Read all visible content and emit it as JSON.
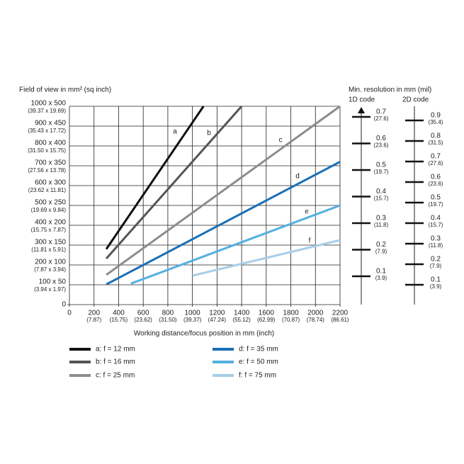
{
  "chart_data": [
    {
      "type": "line",
      "y_title": "Field of view in mm² (sq inch)",
      "x_title": "Working distance/focus position in mm (inch)",
      "xlim": [
        0,
        2200
      ],
      "ylim": [
        0,
        1000
      ],
      "xticks": [
        0,
        200,
        400,
        600,
        800,
        1000,
        1200,
        1400,
        1600,
        1800,
        2000,
        2200
      ],
      "xtick_sublabels": [
        null,
        "(7.87)",
        "(15.75)",
        "(23.62)",
        "(31.50)",
        "(39.37)",
        "(47.24)",
        "(55.12)",
        "(62.99)",
        "(70.87)",
        "(78.74)",
        "(86.61)"
      ],
      "yticks": [
        0,
        {
          "value": 100,
          "label": "100 x 50"
        },
        {
          "value": 200,
          "label": "200 x 100"
        },
        {
          "value": 300,
          "label": "300 x 150"
        },
        {
          "value": 400,
          "label": "400 x 200"
        },
        {
          "value": 500,
          "label": "500 x 250"
        },
        {
          "value": 600,
          "label": "600 x 300"
        },
        {
          "value": 700,
          "label": "700 x 350"
        },
        {
          "value": 800,
          "label": "800 x 400"
        },
        {
          "value": 900,
          "label": "900 x 450"
        },
        {
          "value": 1000,
          "label": "1000 x 500"
        }
      ],
      "ytick_sublabels": [
        null,
        "(3.94 x 1.97)",
        "(7.87 x 3.94)",
        "(11.81 x 5.91)",
        "(15.75 x 7.87)",
        "(19.69 x 9.84)",
        "(23.62 x 11.81)",
        "(27.56 x 13.78)",
        "(31.50 x 15.75)",
        "(35.43 x 17.72)",
        "(39.37 x 19.69)"
      ],
      "grid": true,
      "series": [
        {
          "name": "a: f = 12 mm",
          "label": "a",
          "color": "#111111",
          "x": [
            300,
            1090
          ],
          "values": [
            280,
            1000
          ]
        },
        {
          "name": "b: f = 16 mm",
          "label": "b",
          "color": "#555555",
          "x": [
            300,
            1400
          ],
          "values": [
            232,
            1000
          ]
        },
        {
          "name": "c: f = 25 mm",
          "label": "c",
          "color": "#8c8c8c",
          "x": [
            300,
            2200
          ],
          "values": [
            150,
            1000
          ]
        },
        {
          "name": "d: f = 35 mm",
          "label": "d",
          "color": "#1a6fb5",
          "x": [
            300,
            2200
          ],
          "values": [
            102,
            720
          ]
        },
        {
          "name": "e: f = 50 mm",
          "label": "e",
          "color": "#55b0e0",
          "x": [
            500,
            2200
          ],
          "values": [
            106,
            500
          ]
        },
        {
          "name": "f: f = 75 mm",
          "label": "f",
          "color": "#a8cde8",
          "x": [
            1000,
            2200
          ],
          "values": [
            146,
            325
          ]
        }
      ]
    },
    {
      "type": "scale",
      "title": "Min. resolution in mm (mil)",
      "scales": [
        {
          "name": "1D code",
          "ticks": [
            0.7,
            0.6,
            0.5,
            0.4,
            0.3,
            0.2,
            0.1
          ],
          "sublabels": [
            "(27.6)",
            "(23.6)",
            "(19.7)",
            "(15.7)",
            "(11.8)",
            "(7.9)",
            "(3.9)"
          ]
        },
        {
          "name": "2D code",
          "ticks": [
            0.9,
            0.8,
            0.7,
            0.6,
            0.5,
            0.4,
            0.3,
            0.2,
            0.1
          ],
          "sublabels": [
            "(35.4)",
            "(31.5)",
            "(27.6)",
            "(23.6)",
            "(19.7)",
            "(15.7)",
            "(11.8)",
            "(7.9)",
            "(3.9)"
          ]
        }
      ]
    }
  ]
}
